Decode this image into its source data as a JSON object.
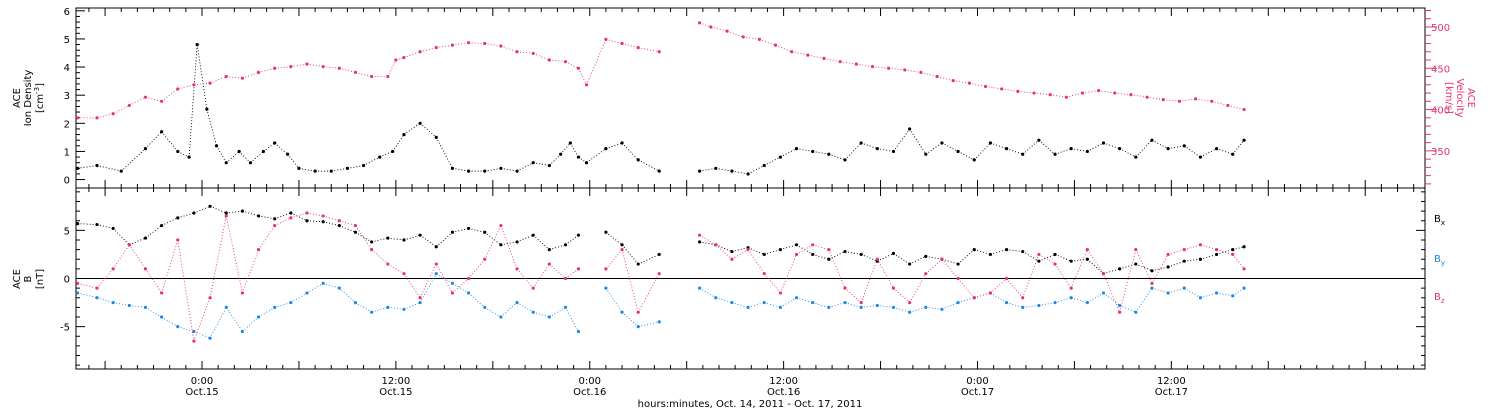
{
  "chart_data": [
    {
      "type": "scatter",
      "panel": "top",
      "xlabel": "hours:minutes, Oct. 14, 2011 - Oct. 17, 2011",
      "x_ticks": [
        {
          "hour": 24,
          "time": "0:00",
          "date": "Oct.15"
        },
        {
          "hour": 36,
          "time": "12:00",
          "date": "Oct.15"
        },
        {
          "hour": 48,
          "time": "0:00",
          "date": "Oct.16"
        },
        {
          "hour": 60,
          "time": "12:00",
          "date": "Oct.16"
        },
        {
          "hour": 72,
          "time": "0:00",
          "date": "Oct.17"
        },
        {
          "hour": 84,
          "time": "12:00",
          "date": "Oct.17"
        }
      ],
      "xlim": [
        16.2,
        99.7
      ],
      "grid": false,
      "left_axis": {
        "label_line1": "ACE",
        "label_line2": "Ion Density",
        "label_line3": "[cm",
        "label_sup": "-3",
        "label_end": "]",
        "ylim": [
          -0.3,
          6.1
        ],
        "ticks": [
          "0",
          "1",
          "2",
          "3",
          "4",
          "5",
          "6"
        ],
        "color": "#000000"
      },
      "right_axis": {
        "label_line1": "ACE",
        "label_line2": "Velocity",
        "label_line3": "[km/s]",
        "ylim": [
          305,
          523
        ],
        "ticks": [
          "350",
          "400",
          "450",
          "500"
        ],
        "color": "#e8336a"
      },
      "series": [
        {
          "color": "#000000",
          "axis": "left",
          "x": [
            16.3,
            17.5,
            19.0,
            20.5,
            21.5,
            22.5,
            23.2,
            23.7,
            24.3,
            24.9,
            25.5,
            26.3,
            27.0,
            27.8,
            28.5,
            29.3,
            30.0,
            31.0,
            32.0,
            33.0,
            34.0,
            35.0,
            35.8,
            36.5,
            37.5,
            38.5,
            39.5,
            40.5,
            41.5,
            42.5,
            43.5,
            44.5,
            45.5,
            46.2,
            46.8,
            47.3,
            47.8,
            49.0,
            50.0,
            51.0,
            52.3,
            54.8,
            55.8,
            56.8,
            57.8,
            58.8,
            59.8,
            60.8,
            61.8,
            62.8,
            63.8,
            64.8,
            65.8,
            66.8,
            67.8,
            68.8,
            69.8,
            70.8,
            71.8,
            72.8,
            73.8,
            74.8,
            75.8,
            76.8,
            77.8,
            78.8,
            79.8,
            80.8,
            81.8,
            82.8,
            83.8,
            84.8,
            85.8,
            86.8,
            87.8,
            88.5
          ],
          "y": [
            0.4,
            0.5,
            0.3,
            1.1,
            1.7,
            1.0,
            0.8,
            4.8,
            2.5,
            1.2,
            0.6,
            1.0,
            0.6,
            1.0,
            1.3,
            0.9,
            0.4,
            0.3,
            0.3,
            0.4,
            0.5,
            0.8,
            1.0,
            1.6,
            2.0,
            1.5,
            0.4,
            0.3,
            0.3,
            0.4,
            0.3,
            0.6,
            0.5,
            0.9,
            1.3,
            0.8,
            0.6,
            1.1,
            1.3,
            0.7,
            0.3,
            0.3,
            0.4,
            0.3,
            0.2,
            0.5,
            0.8,
            1.1,
            1.0,
            0.9,
            0.7,
            1.3,
            1.1,
            1.0,
            1.8,
            0.9,
            1.3,
            1.0,
            0.7,
            1.3,
            1.1,
            0.9,
            1.4,
            0.9,
            1.1,
            1.0,
            1.3,
            1.1,
            0.8,
            1.4,
            1.1,
            1.2,
            0.8,
            1.1,
            0.9,
            1.4
          ]
        },
        {
          "color": "#e8336a",
          "axis": "right",
          "x": [
            16.3,
            17.5,
            18.5,
            19.5,
            20.5,
            21.5,
            22.5,
            23.5,
            24.5,
            25.5,
            26.5,
            27.5,
            28.5,
            29.5,
            30.5,
            31.5,
            32.5,
            33.5,
            34.5,
            35.5,
            36.0,
            36.5,
            37.5,
            38.5,
            39.5,
            40.5,
            41.5,
            42.5,
            43.5,
            44.5,
            45.5,
            46.5,
            47.3,
            47.8,
            49.0,
            50.0,
            51.0,
            52.3,
            54.8,
            55.5,
            56.5,
            57.5,
            58.5,
            59.5,
            60.5,
            61.5,
            62.5,
            63.5,
            64.5,
            65.5,
            66.5,
            67.5,
            68.5,
            69.5,
            70.5,
            71.5,
            72.5,
            73.5,
            74.5,
            75.5,
            76.5,
            77.5,
            78.5,
            79.5,
            80.5,
            81.5,
            82.5,
            83.5,
            84.5,
            85.5,
            86.5,
            87.5,
            88.5
          ],
          "y": [
            390,
            390,
            395,
            405,
            415,
            410,
            425,
            430,
            432,
            440,
            438,
            445,
            450,
            452,
            455,
            452,
            450,
            445,
            440,
            440,
            460,
            463,
            470,
            475,
            478,
            481,
            480,
            477,
            470,
            468,
            460,
            458,
            450,
            430,
            485,
            480,
            475,
            470,
            505,
            500,
            495,
            488,
            485,
            478,
            470,
            466,
            462,
            458,
            455,
            452,
            450,
            448,
            445,
            440,
            435,
            432,
            428,
            425,
            422,
            420,
            418,
            415,
            420,
            423,
            420,
            418,
            415,
            412,
            410,
            413,
            410,
            405,
            400
          ]
        }
      ]
    },
    {
      "type": "scatter",
      "panel": "bottom",
      "xlim": [
        16.2,
        99.7
      ],
      "grid": false,
      "zero_line": true,
      "left_axis": {
        "label_line1": "ACE",
        "label_line2": "B",
        "label_line3": "[nT]",
        "ylim": [
          -9.4,
          9.4
        ],
        "ticks": [
          "-5",
          "0",
          "5"
        ],
        "color": "#000000"
      },
      "legend_position": "right",
      "series": [
        {
          "name": "B",
          "sub": "x",
          "color": "#000000",
          "x": [
            16.3,
            17.5,
            18.5,
            19.5,
            20.5,
            21.5,
            22.5,
            23.5,
            24.5,
            25.5,
            26.5,
            27.5,
            28.5,
            29.5,
            30.5,
            31.5,
            32.5,
            33.5,
            34.5,
            35.5,
            36.5,
            37.5,
            38.5,
            39.5,
            40.5,
            41.5,
            42.5,
            43.5,
            44.5,
            45.5,
            46.5,
            47.3,
            49.0,
            50.0,
            51.0,
            52.3,
            54.8,
            55.8,
            56.8,
            57.8,
            58.8,
            59.8,
            60.8,
            61.8,
            62.8,
            63.8,
            64.8,
            65.8,
            66.8,
            67.8,
            68.8,
            69.8,
            70.8,
            71.8,
            72.8,
            73.8,
            74.8,
            75.8,
            76.8,
            77.8,
            78.8,
            79.8,
            80.8,
            81.8,
            82.8,
            83.8,
            84.8,
            85.8,
            86.8,
            87.8,
            88.5
          ],
          "y": [
            5.7,
            5.6,
            5.2,
            3.5,
            4.2,
            5.5,
            6.3,
            6.8,
            7.5,
            6.8,
            7.0,
            6.5,
            6.2,
            6.8,
            6.0,
            5.9,
            5.5,
            4.8,
            3.8,
            4.2,
            4.0,
            4.5,
            3.3,
            4.8,
            5.2,
            4.8,
            3.5,
            3.8,
            4.5,
            3.0,
            3.5,
            4.5,
            4.8,
            3.5,
            1.5,
            2.5,
            3.8,
            3.5,
            2.8,
            3.2,
            2.5,
            3.0,
            3.5,
            2.5,
            2.0,
            2.8,
            2.5,
            1.8,
            2.6,
            1.5,
            2.3,
            2.0,
            1.5,
            3.0,
            2.5,
            3.0,
            2.8,
            1.8,
            2.5,
            1.8,
            2.0,
            0.5,
            1.0,
            1.5,
            0.8,
            1.2,
            1.8,
            2.0,
            2.5,
            3.0,
            3.3
          ]
        },
        {
          "name": "B",
          "sub": "y",
          "color": "#1e88e5",
          "x": [
            16.3,
            17.5,
            18.5,
            19.5,
            20.5,
            21.5,
            22.5,
            23.5,
            24.5,
            25.5,
            26.5,
            27.5,
            28.5,
            29.5,
            30.5,
            31.5,
            32.5,
            33.5,
            34.5,
            35.5,
            36.5,
            37.5,
            38.5,
            39.5,
            40.5,
            41.5,
            42.5,
            43.5,
            44.5,
            45.5,
            46.5,
            47.3,
            49.0,
            50.0,
            51.0,
            52.3,
            54.8,
            55.8,
            56.8,
            57.8,
            58.8,
            59.8,
            60.8,
            61.8,
            62.8,
            63.8,
            64.8,
            65.8,
            66.8,
            67.8,
            68.8,
            69.8,
            70.8,
            71.8,
            72.8,
            73.8,
            74.8,
            75.8,
            76.8,
            77.8,
            78.8,
            79.8,
            80.8,
            81.8,
            82.8,
            83.8,
            84.8,
            85.8,
            86.8,
            87.8,
            88.5
          ],
          "y": [
            -1.5,
            -2.0,
            -2.5,
            -2.8,
            -3.0,
            -4.0,
            -5.0,
            -5.5,
            -6.2,
            -3.0,
            -5.5,
            -4.0,
            -3.0,
            -2.5,
            -1.5,
            -0.5,
            -1.0,
            -2.5,
            -3.5,
            -3.0,
            -3.2,
            -2.5,
            0.5,
            -0.5,
            -1.5,
            -3.0,
            -4.0,
            -2.5,
            -3.5,
            -4.0,
            -3.0,
            -5.5,
            -1.0,
            -3.5,
            -5.0,
            -4.5,
            -1.0,
            -2.0,
            -2.5,
            -3.0,
            -2.5,
            -3.0,
            -2.0,
            -2.5,
            -3.0,
            -2.5,
            -3.0,
            -2.8,
            -3.0,
            -3.5,
            -3.0,
            -3.2,
            -2.5,
            -2.0,
            -1.5,
            -2.5,
            -3.0,
            -2.8,
            -2.5,
            -2.0,
            -2.5,
            -1.5,
            -2.8,
            -3.5,
            -1.0,
            -1.5,
            -1.0,
            -2.0,
            -1.5,
            -1.8,
            -1.0
          ]
        },
        {
          "name": "B",
          "sub": "z",
          "color": "#e8336a",
          "x": [
            16.3,
            17.5,
            18.5,
            19.5,
            20.5,
            21.5,
            22.5,
            23.5,
            24.5,
            25.5,
            26.5,
            27.5,
            28.5,
            29.5,
            30.5,
            31.5,
            32.5,
            33.5,
            34.5,
            35.5,
            36.5,
            37.5,
            38.5,
            39.5,
            40.5,
            41.5,
            42.5,
            43.5,
            44.5,
            45.5,
            46.5,
            47.3,
            49.0,
            50.0,
            51.0,
            52.3,
            54.8,
            55.8,
            56.8,
            57.8,
            58.8,
            59.8,
            60.8,
            61.8,
            62.8,
            63.8,
            64.8,
            65.8,
            66.8,
            67.8,
            68.8,
            69.8,
            70.8,
            71.8,
            72.8,
            73.8,
            74.8,
            75.8,
            76.8,
            77.8,
            78.8,
            79.8,
            80.8,
            81.8,
            82.8,
            83.8,
            84.8,
            85.8,
            86.8,
            87.8,
            88.5
          ],
          "y": [
            -0.5,
            -1.0,
            1.0,
            3.5,
            1.0,
            -1.5,
            4.0,
            -6.5,
            -2.0,
            6.5,
            -1.5,
            3.0,
            5.5,
            6.3,
            6.8,
            6.5,
            6.0,
            5.5,
            3.0,
            1.5,
            0.5,
            -2.0,
            1.5,
            -1.5,
            0.0,
            2.0,
            5.5,
            1.0,
            -1.0,
            1.5,
            0.0,
            1.0,
            1.0,
            3.0,
            -3.5,
            0.5,
            4.5,
            3.5,
            2.0,
            3.0,
            0.5,
            -1.5,
            2.5,
            3.5,
            3.0,
            -1.0,
            -2.5,
            2.0,
            -1.0,
            -2.5,
            0.5,
            2.0,
            0.0,
            -2.0,
            -1.5,
            0.0,
            -2.0,
            2.5,
            1.5,
            -1.0,
            3.0,
            0.5,
            -3.5,
            3.0,
            -0.5,
            2.5,
            3.0,
            3.5,
            3.0,
            2.5,
            1.0
          ]
        }
      ]
    }
  ]
}
